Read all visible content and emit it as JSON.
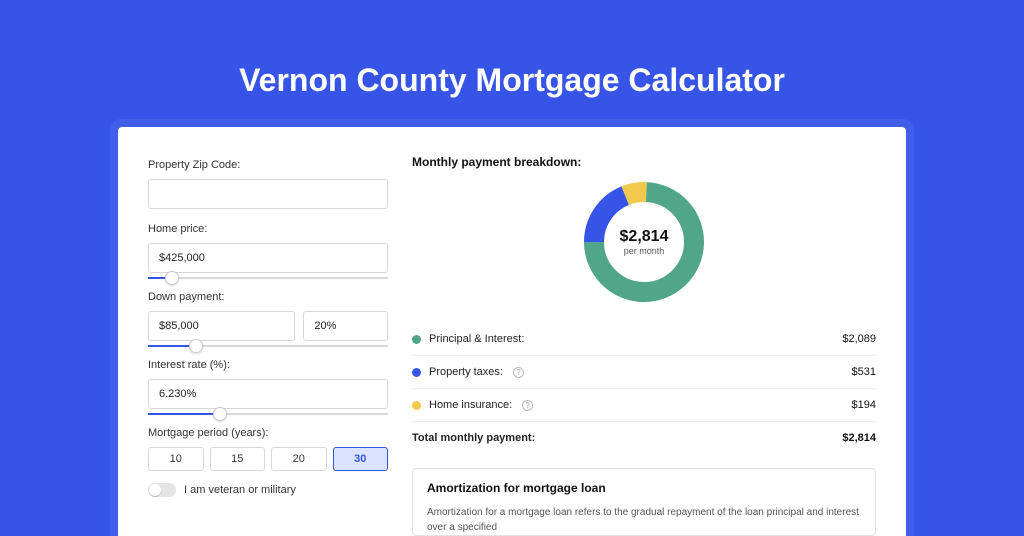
{
  "page": {
    "title": "Vernon County Mortgage Calculator",
    "background_color": "#3754e8"
  },
  "form": {
    "zip": {
      "label": "Property Zip Code:",
      "value": ""
    },
    "home_price": {
      "label": "Home price:",
      "value": "$425,000",
      "slider_fill_pct": 10
    },
    "down_payment": {
      "label": "Down payment:",
      "amount": "$85,000",
      "percent": "20%",
      "slider_fill_pct": 20
    },
    "interest_rate": {
      "label": "Interest rate (%):",
      "value": "6.230%",
      "slider_fill_pct": 30
    },
    "mortgage_period": {
      "label": "Mortgage period (years):",
      "options": [
        "10",
        "15",
        "20",
        "30"
      ],
      "selected": "30"
    },
    "veteran": {
      "label": "I am veteran or military",
      "checked": false
    }
  },
  "breakdown": {
    "title": "Monthly payment breakdown:",
    "center_amount": "$2,814",
    "center_sub": "per month",
    "items": [
      {
        "label": "Principal & Interest:",
        "value": "$2,089",
        "color": "#51a68a",
        "amount": 2089,
        "info": false
      },
      {
        "label": "Property taxes:",
        "value": "$531",
        "color": "#3754e8",
        "amount": 531,
        "info": true
      },
      {
        "label": "Home insurance:",
        "value": "$194",
        "color": "#f2c94c",
        "amount": 194,
        "info": true
      }
    ],
    "total": {
      "label": "Total monthly payment:",
      "value": "$2,814"
    }
  },
  "amortization": {
    "title": "Amortization for mortgage loan",
    "text": "Amortization for a mortgage loan refers to the gradual repayment of the loan principal and interest over a specified"
  },
  "donut": {
    "radius": 50,
    "stroke": 20,
    "colors": {
      "pi": "#51a68a",
      "taxes": "#3754e8",
      "insurance": "#f2c94c"
    }
  }
}
